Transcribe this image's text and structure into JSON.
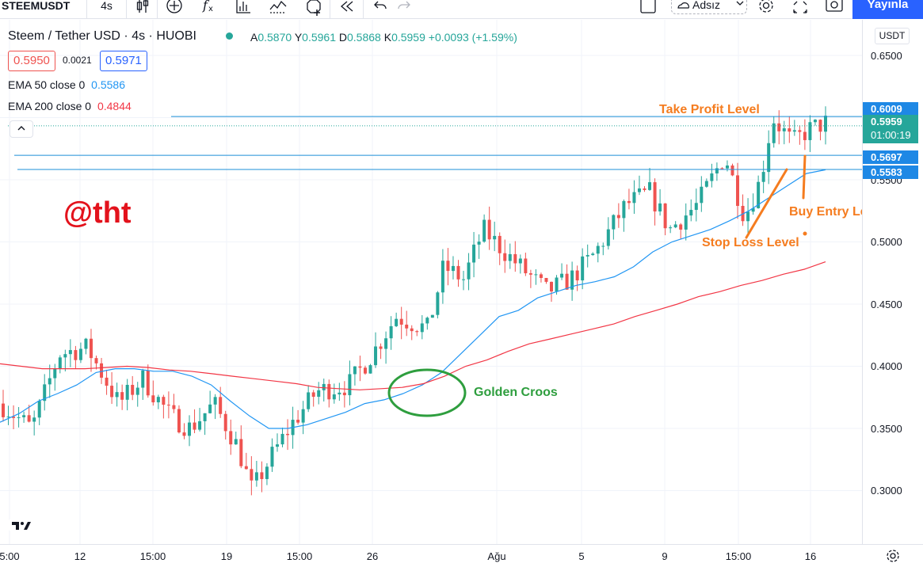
{
  "toolbar": {
    "symbol": "STEEMUSDT",
    "interval": "4s",
    "layout_name": "Adsız",
    "publish_label": "Yayınla",
    "icons": [
      "candles-icon",
      "add-indicator-icon",
      "fx-icon",
      "bar-chart-icon",
      "alert-icon",
      "add-alert-icon",
      "replay-icon",
      "undo-icon",
      "redo-icon",
      "layout-icon",
      "settings-icon",
      "fullscreen-icon",
      "snapshot-icon"
    ]
  },
  "legend": {
    "title": "Steem / Tether USD · 4s · HUOBI",
    "ohlc": {
      "open_label": "A",
      "open": "0.5870",
      "high_label": "Y",
      "high": "0.5961",
      "low_label": "D",
      "low": "0.5868",
      "close_label": "K",
      "close": "0.5959",
      "change": "+0.0093 (+1.59%)"
    },
    "bid": "0.5950",
    "spread": "0.0021",
    "ask": "0.5971",
    "ema50": {
      "label": "EMA 50 close 0",
      "value": "0.5586",
      "color": "#2196f3"
    },
    "ema200": {
      "label": "EMA 200 close 0",
      "value": "0.4844",
      "color": "#f23645"
    }
  },
  "price_axis": {
    "currency": "USDT",
    "ticks": [
      "0.6500",
      "0.6000",
      "0.5500",
      "0.5000",
      "0.4500",
      "0.4000",
      "0.3500",
      "0.3000"
    ],
    "labels": {
      "take_profit": "0.6009",
      "current": "0.5959",
      "countdown": "01:00:19",
      "entry": "0.5697",
      "stop": "0.5583"
    }
  },
  "time_axis": {
    "ticks": [
      "5:00",
      "12",
      "15:00",
      "19",
      "15:00",
      "26",
      "Ağu",
      "5",
      "9",
      "15:00",
      "16"
    ]
  },
  "annotations": {
    "watermark": "@tht",
    "take_profit": "Take Profit Level",
    "buy_entry": "Buy Entry Level",
    "stop_loss": "Stop Loss Level",
    "golden_cross": "Golden Croos"
  },
  "colors": {
    "up": "#26a69a",
    "down": "#ef5350",
    "ema50": "#2196f3",
    "ema200": "#f23645",
    "level_line": "#1c8fd8",
    "annotation": "#f57c1f",
    "golden": "#2e9e3e"
  },
  "chart_data": {
    "type": "candlestick",
    "symbol": "STEEMUSDT",
    "ylim": [
      0.28,
      0.66
    ],
    "levels": {
      "take_profit": 0.6009,
      "entry": 0.5697,
      "stop_loss": 0.5583,
      "current": 0.5959
    },
    "ema50": [
      0.355,
      0.362,
      0.372,
      0.378,
      0.385,
      0.395,
      0.398,
      0.398,
      0.396,
      0.396,
      0.392,
      0.385,
      0.372,
      0.36,
      0.35,
      0.35,
      0.353,
      0.358,
      0.363,
      0.37,
      0.373,
      0.378,
      0.385,
      0.395,
      0.41,
      0.425,
      0.44,
      0.445,
      0.455,
      0.46,
      0.465,
      0.468,
      0.472,
      0.48,
      0.492,
      0.5,
      0.505,
      0.51,
      0.517,
      0.525,
      0.535,
      0.545,
      0.555,
      0.558
    ],
    "ema200": [
      0.402,
      0.4,
      0.398,
      0.398,
      0.398,
      0.399,
      0.4,
      0.399,
      0.397,
      0.396,
      0.394,
      0.392,
      0.39,
      0.388,
      0.386,
      0.383,
      0.382,
      0.381,
      0.382,
      0.383,
      0.386,
      0.392,
      0.4,
      0.405,
      0.412,
      0.418,
      0.422,
      0.426,
      0.43,
      0.434,
      0.44,
      0.445,
      0.45,
      0.456,
      0.46,
      0.465,
      0.469,
      0.474,
      0.478,
      0.484
    ]
  }
}
